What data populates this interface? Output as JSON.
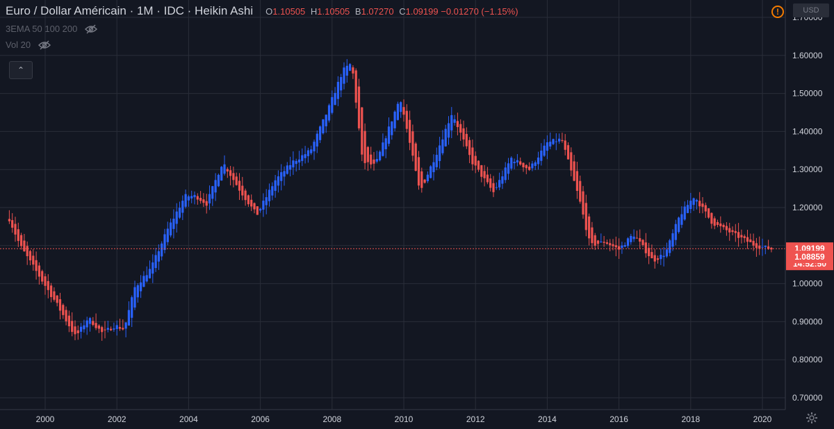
{
  "header": {
    "symbol": "Euro / Dollar Américain · 1M · IDC · Heikin Ashi",
    "ohlc": [
      {
        "label": "O",
        "value": "1.10505"
      },
      {
        "label": "H",
        "value": "1.10505"
      },
      {
        "label": "B",
        "value": "1.07270"
      },
      {
        "label": "C",
        "value": "1.09199"
      }
    ],
    "change": "−0.01270 (−1.15%)",
    "indicators": [
      {
        "label": "3EMA 50 100 200",
        "icon": "eye-crossed-icon"
      },
      {
        "label": "Vol 20",
        "icon": "eye-crossed-icon"
      }
    ],
    "currency": "USD",
    "collapse_icon": "chevron-up-icon",
    "warning_icon": "warning-icon",
    "settings_icon": "gear-icon"
  },
  "colors": {
    "background": "#131722",
    "grid": "#2a2e39",
    "up": "#2962ff",
    "down": "#ef5350",
    "axis_text": "#d1d4dc",
    "price_line": "#ef5350"
  },
  "chart_data": {
    "type": "candlestick",
    "x_range": [
      1998.9,
      2020.6
    ],
    "y_range": [
      0.675,
      1.75
    ],
    "y_ticks": [
      "0.70000",
      "0.80000",
      "0.90000",
      "1.00000",
      "1.10000",
      "1.20000",
      "1.30000",
      "1.40000",
      "1.50000",
      "1.60000",
      "1.70000"
    ],
    "x_ticks": [
      "2000",
      "2002",
      "2004",
      "2006",
      "2008",
      "2010",
      "2012",
      "2014",
      "2016",
      "2018",
      "2020"
    ],
    "grid": true,
    "price_labels": [
      {
        "kind": "last_price",
        "text": "1.09199",
        "value": 1.09199
      },
      {
        "kind": "countdown",
        "text": "14:52:50"
      },
      {
        "kind": "bid",
        "text": "1.08859",
        "value": 1.08859
      }
    ],
    "path": [
      [
        1999.0,
        1.17
      ],
      [
        1999.3,
        1.1
      ],
      [
        1999.9,
        1.01
      ],
      [
        2000.3,
        0.95
      ],
      [
        2000.85,
        0.86
      ],
      [
        2001.2,
        0.91
      ],
      [
        2001.6,
        0.87
      ],
      [
        2001.95,
        0.89
      ],
      [
        2002.2,
        0.88
      ],
      [
        2002.5,
        0.99
      ],
      [
        2002.95,
        1.04
      ],
      [
        2003.4,
        1.14
      ],
      [
        2003.9,
        1.23
      ],
      [
        2004.2,
        1.23
      ],
      [
        2004.5,
        1.21
      ],
      [
        2004.95,
        1.32
      ],
      [
        2005.4,
        1.25
      ],
      [
        2005.9,
        1.18
      ],
      [
        2006.4,
        1.27
      ],
      [
        2006.9,
        1.32
      ],
      [
        2007.4,
        1.35
      ],
      [
        2007.9,
        1.46
      ],
      [
        2008.3,
        1.56
      ],
      [
        2008.55,
        1.58
      ],
      [
        2008.85,
        1.32
      ],
      [
        2009.2,
        1.31
      ],
      [
        2009.9,
        1.49
      ],
      [
        2010.45,
        1.24
      ],
      [
        2010.9,
        1.34
      ],
      [
        2011.35,
        1.45
      ],
      [
        2011.9,
        1.32
      ],
      [
        2012.5,
        1.24
      ],
      [
        2013.0,
        1.33
      ],
      [
        2013.5,
        1.3
      ],
      [
        2014.0,
        1.37
      ],
      [
        2014.4,
        1.38
      ],
      [
        2014.9,
        1.22
      ],
      [
        2015.2,
        1.1
      ],
      [
        2015.6,
        1.11
      ],
      [
        2016.0,
        1.09
      ],
      [
        2016.4,
        1.13
      ],
      [
        2016.95,
        1.06
      ],
      [
        2017.3,
        1.08
      ],
      [
        2017.7,
        1.18
      ],
      [
        2018.1,
        1.23
      ],
      [
        2018.6,
        1.16
      ],
      [
        2019.2,
        1.13
      ],
      [
        2019.8,
        1.1
      ],
      [
        2020.3,
        1.09
      ]
    ]
  }
}
